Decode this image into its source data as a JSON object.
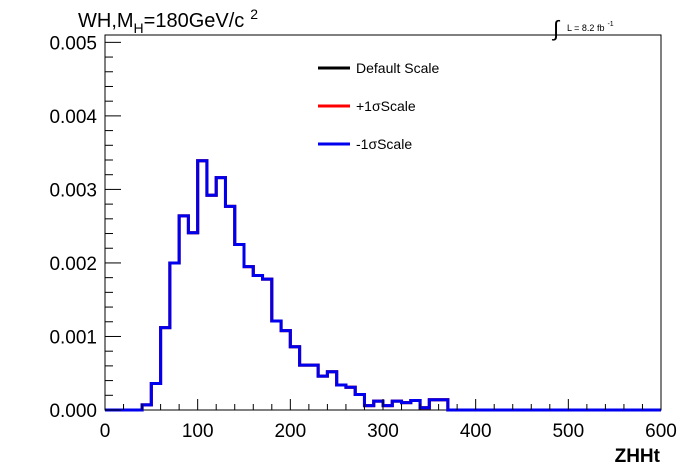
{
  "chart_data": {
    "type": "line",
    "title_parts": {
      "main": "WH,M",
      "subscript": "H",
      "rest": "=180GeV/c",
      "superscript": "2"
    },
    "luminosity": {
      "integral_symbol": "∫",
      "text": "L = 8.2 fb",
      "superscript": "-1"
    },
    "xlabel": "ZHHt",
    "ylabel": "",
    "xlim": [
      0,
      600
    ],
    "ylim": [
      0,
      0.0051
    ],
    "x_ticks": [
      {
        "value": 0,
        "label": "0"
      },
      {
        "value": 100,
        "label": "100"
      },
      {
        "value": 200,
        "label": "200"
      },
      {
        "value": 300,
        "label": "300"
      },
      {
        "value": 400,
        "label": "400"
      },
      {
        "value": 500,
        "label": "500"
      },
      {
        "value": 600,
        "label": "600"
      }
    ],
    "y_ticks": [
      {
        "value": 0,
        "label": "0.000"
      },
      {
        "value": 0.001,
        "label": "0.001"
      },
      {
        "value": 0.002,
        "label": "0.002"
      },
      {
        "value": 0.003,
        "label": "0.003"
      },
      {
        "value": 0.004,
        "label": "0.004"
      },
      {
        "value": 0.005,
        "label": "0.005"
      }
    ],
    "grid": false,
    "legend_position": "top-center",
    "bin_width": 10,
    "series": [
      {
        "name": "Default Scale",
        "color": "#000000",
        "values": [
          0,
          0,
          0,
          0,
          7e-05,
          0.00036,
          0.00112,
          0.002,
          0.00264,
          0.00241,
          0.00339,
          0.00292,
          0.00316,
          0.00277,
          0.00225,
          0.00195,
          0.00183,
          0.00178,
          0.00121,
          0.00108,
          0.00086,
          0.00061,
          0.00061,
          0.00046,
          0.00052,
          0.00034,
          0.00031,
          0.00021,
          6e-05,
          0.00012,
          6e-05,
          0.00012,
          0.0001,
          0.00013,
          3e-05,
          0.00014,
          0.00014,
          0,
          0,
          0,
          0,
          0,
          0,
          0,
          0,
          0,
          0,
          0,
          0,
          0,
          0,
          0,
          0,
          0,
          0,
          0,
          0,
          0,
          0,
          0
        ]
      },
      {
        "name": "+1σScale",
        "color": "#ff0000",
        "values": [
          0,
          0,
          0,
          0,
          7e-05,
          0.00036,
          0.00112,
          0.002,
          0.00264,
          0.00241,
          0.00339,
          0.00292,
          0.00316,
          0.00277,
          0.00225,
          0.00195,
          0.00183,
          0.00178,
          0.00121,
          0.00108,
          0.00086,
          0.00061,
          0.00061,
          0.00046,
          0.00052,
          0.00034,
          0.00031,
          0.00021,
          6e-05,
          0.00012,
          6e-05,
          0.00012,
          0.0001,
          0.00013,
          3e-05,
          0.00014,
          0.00014,
          0,
          0,
          0,
          0,
          0,
          0,
          0,
          0,
          0,
          0,
          0,
          0,
          0,
          0,
          0,
          0,
          0,
          0,
          0,
          0,
          0,
          0,
          0
        ]
      },
      {
        "name": "-1σScale",
        "color": "#0000ee",
        "values": [
          0,
          0,
          0,
          0,
          7e-05,
          0.00036,
          0.00112,
          0.002,
          0.00264,
          0.00241,
          0.00339,
          0.00292,
          0.00316,
          0.00277,
          0.00225,
          0.00195,
          0.00183,
          0.00178,
          0.00121,
          0.00108,
          0.00086,
          0.00061,
          0.00061,
          0.00046,
          0.00052,
          0.00034,
          0.00031,
          0.00021,
          6e-05,
          0.00012,
          6e-05,
          0.00012,
          0.0001,
          0.00013,
          3e-05,
          0.00014,
          0.00014,
          0,
          0,
          0,
          0,
          0,
          0,
          0,
          0,
          0,
          0,
          0,
          0,
          0,
          0,
          0,
          0,
          0,
          0,
          0,
          0,
          0,
          0,
          0
        ]
      }
    ]
  }
}
